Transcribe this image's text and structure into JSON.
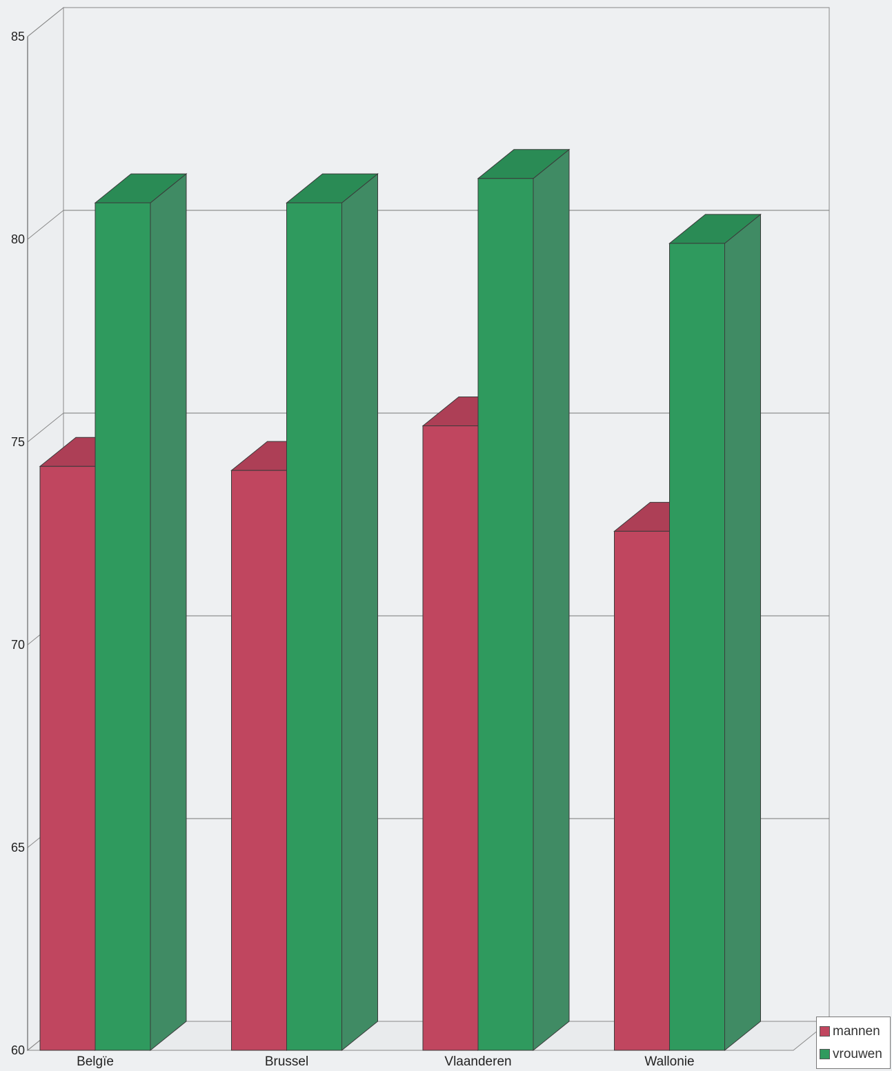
{
  "chart_data": {
    "type": "bar",
    "categories": [
      "Belgïe",
      "Brussel",
      "Vlaanderen",
      "Wallonie"
    ],
    "series": [
      {
        "name": "mannen",
        "values": [
          74.4,
          74.3,
          75.4,
          72.8
        ],
        "color": "#c0465f"
      },
      {
        "name": "vrouwen",
        "values": [
          80.9,
          80.9,
          81.5,
          79.9
        ],
        "color": "#2f9a5e"
      }
    ],
    "yticks": [
      60,
      65,
      70,
      75,
      80,
      85
    ],
    "ylim": [
      60,
      85
    ],
    "grid": true,
    "three_d": true,
    "legend_position": "bottom-right",
    "title": "",
    "xlabel": "",
    "ylabel": ""
  }
}
